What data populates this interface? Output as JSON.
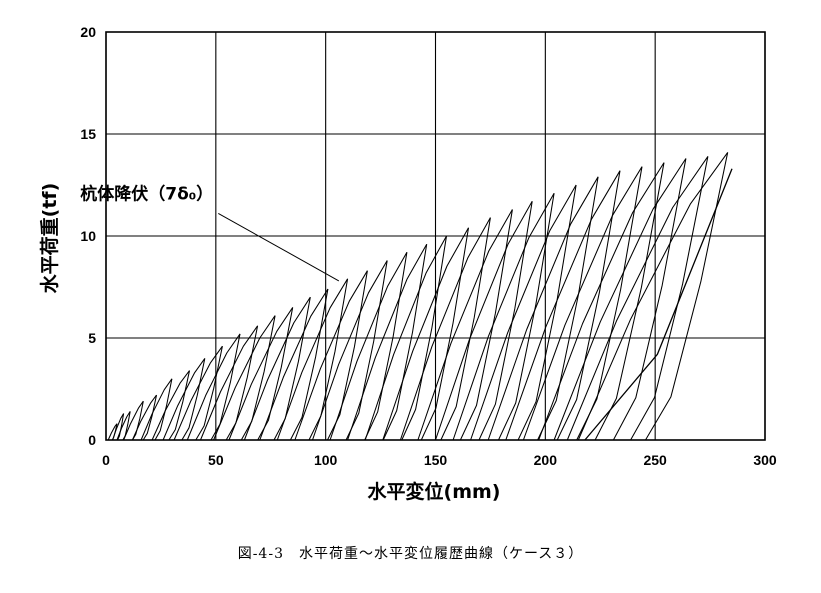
{
  "chart_data": {
    "type": "line",
    "xlabel": "水平変位(mm)",
    "ylabel": "水平荷重(tf)",
    "xlim": [
      0,
      300
    ],
    "ylim": [
      0,
      20
    ],
    "xticks": [
      0,
      50,
      100,
      150,
      200,
      250,
      300
    ],
    "yticks": [
      0,
      5,
      10,
      15,
      20
    ],
    "grid": true,
    "annotation": {
      "text": "杭体降伏（7δ₀）",
      "point": [
        106,
        7.8
      ],
      "text_at": [
        32,
        11.5
      ]
    },
    "cycles": [
      {
        "start": 1,
        "peak": [
          5,
          0.8
        ]
      },
      {
        "start": 3,
        "peak": [
          8,
          1.3
        ]
      },
      {
        "start": 5,
        "peak": [
          11,
          1.4
        ]
      },
      {
        "start": 8,
        "peak": [
          17,
          1.9
        ]
      },
      {
        "start": 12,
        "peak": [
          23,
          2.2
        ]
      },
      {
        "start": 16,
        "peak": [
          30,
          3.0
        ]
      },
      {
        "start": 21,
        "peak": [
          38,
          3.4
        ]
      },
      {
        "start": 26,
        "peak": [
          45,
          4.0
        ]
      },
      {
        "start": 31,
        "peak": [
          53,
          4.6
        ]
      },
      {
        "start": 37,
        "peak": [
          61,
          5.2
        ]
      },
      {
        "start": 43,
        "peak": [
          69,
          5.6
        ]
      },
      {
        "start": 49,
        "peak": [
          77,
          6.1
        ]
      },
      {
        "start": 56,
        "peak": [
          85,
          6.5
        ]
      },
      {
        "start": 63,
        "peak": [
          93,
          7.0
        ]
      },
      {
        "start": 70,
        "peak": [
          101,
          7.4
        ]
      },
      {
        "start": 78,
        "peak": [
          110,
          7.9
        ]
      },
      {
        "start": 86,
        "peak": [
          119,
          8.3
        ]
      },
      {
        "start": 94,
        "peak": [
          128,
          8.8
        ]
      },
      {
        "start": 102,
        "peak": [
          137,
          9.2
        ]
      },
      {
        "start": 110,
        "peak": [
          146,
          9.6
        ]
      },
      {
        "start": 118,
        "peak": [
          155,
          10.0
        ]
      },
      {
        "start": 126,
        "peak": [
          165,
          10.4
        ]
      },
      {
        "start": 134,
        "peak": [
          175,
          10.9
        ]
      },
      {
        "start": 142,
        "peak": [
          185,
          11.3
        ]
      },
      {
        "start": 150,
        "peak": [
          194,
          11.7
        ]
      },
      {
        "start": 158,
        "peak": [
          204,
          12.1
        ]
      },
      {
        "start": 166,
        "peak": [
          214,
          12.5
        ]
      },
      {
        "start": 174,
        "peak": [
          224,
          12.9
        ]
      },
      {
        "start": 182,
        "peak": [
          234,
          13.2
        ]
      },
      {
        "start": 190,
        "peak": [
          244,
          13.4
        ]
      },
      {
        "start": 197,
        "peak": [
          254,
          13.6
        ]
      },
      {
        "start": 204,
        "peak": [
          264,
          13.8
        ]
      },
      {
        "start": 210,
        "peak": [
          274,
          13.9
        ]
      },
      {
        "start": 215,
        "peak": [
          283,
          14.1
        ]
      }
    ],
    "final_unloading": [
      [
        285,
        13.3
      ],
      [
        251,
        4.2
      ],
      [
        218,
        0
      ]
    ]
  },
  "caption": "図-4-3　水平荷重～水平変位履歴曲線（ケース３）"
}
